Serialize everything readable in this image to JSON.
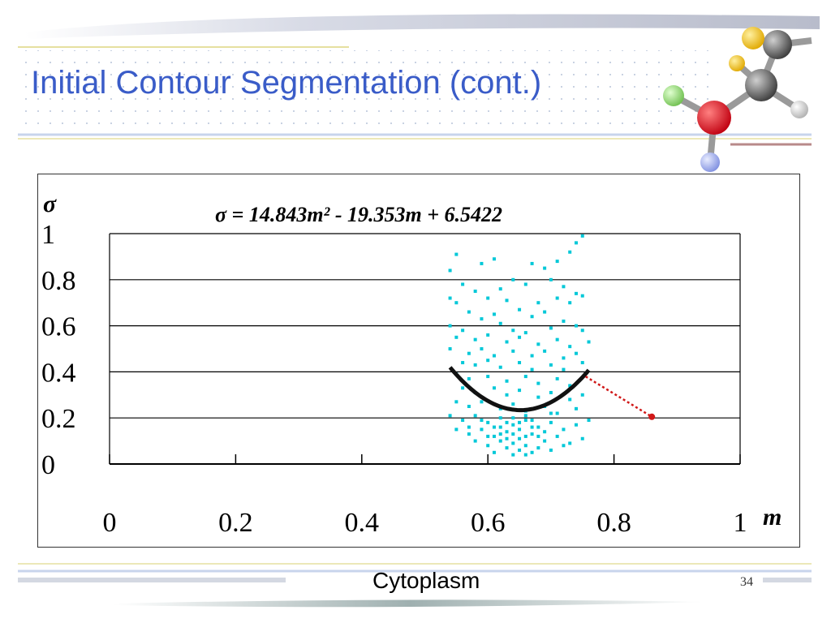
{
  "slide": {
    "title": "Initial Contour Segmentation (cont.)",
    "caption": "Cytoplasm",
    "page_number": "34"
  },
  "colors": {
    "title": "#3a5cc8",
    "points": "#00c8d8",
    "curve": "#111111",
    "annotation": "#d01818",
    "grid": "#000000"
  },
  "chart_data": {
    "type": "scatter",
    "equation": "σ = 14.843m² - 19.353m + 6.5422",
    "xlabel": "m",
    "ylabel": "σ",
    "xlim": [
      0,
      1
    ],
    "ylim": [
      0,
      1
    ],
    "x_ticks": [
      "0",
      "0.2",
      "0.4",
      "0.6",
      "0.8",
      "1"
    ],
    "y_ticks": [
      "0",
      "0.2",
      "0.4",
      "0.6",
      "0.8",
      "1"
    ],
    "grid": "horizontal",
    "fit": {
      "coefficients": [
        14.843,
        -19.353,
        6.5422
      ],
      "x_range": [
        0.54,
        0.76
      ]
    },
    "annotation_point": {
      "x": 0.86,
      "y": 0.205,
      "from": {
        "x": 0.755,
        "y": 0.38
      }
    },
    "series": [
      {
        "points": [
          [
            0.55,
            0.91
          ],
          [
            0.54,
            0.84
          ],
          [
            0.59,
            0.87
          ],
          [
            0.61,
            0.89
          ],
          [
            0.67,
            0.87
          ],
          [
            0.69,
            0.85
          ],
          [
            0.71,
            0.88
          ],
          [
            0.74,
            0.96
          ],
          [
            0.75,
            0.99
          ],
          [
            0.73,
            0.92
          ],
          [
            0.56,
            0.78
          ],
          [
            0.58,
            0.75
          ],
          [
            0.64,
            0.8
          ],
          [
            0.66,
            0.78
          ],
          [
            0.7,
            0.8
          ],
          [
            0.72,
            0.77
          ],
          [
            0.74,
            0.74
          ],
          [
            0.75,
            0.73
          ],
          [
            0.62,
            0.76
          ],
          [
            0.54,
            0.72
          ],
          [
            0.55,
            0.7
          ],
          [
            0.6,
            0.72
          ],
          [
            0.63,
            0.71
          ],
          [
            0.68,
            0.7
          ],
          [
            0.71,
            0.72
          ],
          [
            0.73,
            0.7
          ],
          [
            0.57,
            0.66
          ],
          [
            0.59,
            0.63
          ],
          [
            0.61,
            0.65
          ],
          [
            0.65,
            0.67
          ],
          [
            0.67,
            0.64
          ],
          [
            0.69,
            0.66
          ],
          [
            0.72,
            0.62
          ],
          [
            0.74,
            0.6
          ],
          [
            0.54,
            0.6
          ],
          [
            0.56,
            0.58
          ],
          [
            0.62,
            0.61
          ],
          [
            0.64,
            0.58
          ],
          [
            0.66,
            0.57
          ],
          [
            0.7,
            0.59
          ],
          [
            0.75,
            0.58
          ],
          [
            0.55,
            0.55
          ],
          [
            0.58,
            0.54
          ],
          [
            0.6,
            0.56
          ],
          [
            0.63,
            0.53
          ],
          [
            0.65,
            0.55
          ],
          [
            0.68,
            0.52
          ],
          [
            0.71,
            0.54
          ],
          [
            0.73,
            0.51
          ],
          [
            0.76,
            0.53
          ],
          [
            0.54,
            0.5
          ],
          [
            0.57,
            0.48
          ],
          [
            0.59,
            0.5
          ],
          [
            0.61,
            0.47
          ],
          [
            0.64,
            0.49
          ],
          [
            0.67,
            0.47
          ],
          [
            0.69,
            0.49
          ],
          [
            0.72,
            0.46
          ],
          [
            0.74,
            0.48
          ],
          [
            0.56,
            0.44
          ],
          [
            0.58,
            0.43
          ],
          [
            0.6,
            0.45
          ],
          [
            0.62,
            0.42
          ],
          [
            0.65,
            0.44
          ],
          [
            0.67,
            0.41
          ],
          [
            0.7,
            0.43
          ],
          [
            0.72,
            0.41
          ],
          [
            0.75,
            0.44
          ],
          [
            0.55,
            0.39
          ],
          [
            0.57,
            0.37
          ],
          [
            0.6,
            0.38
          ],
          [
            0.63,
            0.36
          ],
          [
            0.66,
            0.38
          ],
          [
            0.68,
            0.35
          ],
          [
            0.71,
            0.37
          ],
          [
            0.73,
            0.34
          ],
          [
            0.56,
            0.33
          ],
          [
            0.58,
            0.31
          ],
          [
            0.61,
            0.33
          ],
          [
            0.63,
            0.3
          ],
          [
            0.65,
            0.32
          ],
          [
            0.68,
            0.29
          ],
          [
            0.7,
            0.31
          ],
          [
            0.73,
            0.28
          ],
          [
            0.75,
            0.3
          ],
          [
            0.55,
            0.27
          ],
          [
            0.57,
            0.25
          ],
          [
            0.59,
            0.27
          ],
          [
            0.62,
            0.24
          ],
          [
            0.64,
            0.26
          ],
          [
            0.66,
            0.23
          ],
          [
            0.69,
            0.25
          ],
          [
            0.71,
            0.22
          ],
          [
            0.74,
            0.24
          ],
          [
            0.54,
            0.21
          ],
          [
            0.56,
            0.19
          ],
          [
            0.58,
            0.21
          ],
          [
            0.6,
            0.18
          ],
          [
            0.62,
            0.2
          ],
          [
            0.64,
            0.17
          ],
          [
            0.66,
            0.19
          ],
          [
            0.68,
            0.16
          ],
          [
            0.7,
            0.18
          ],
          [
            0.72,
            0.15
          ],
          [
            0.74,
            0.17
          ],
          [
            0.76,
            0.19
          ],
          [
            0.55,
            0.15
          ],
          [
            0.57,
            0.13
          ],
          [
            0.59,
            0.15
          ],
          [
            0.61,
            0.12
          ],
          [
            0.63,
            0.14
          ],
          [
            0.65,
            0.11
          ],
          [
            0.67,
            0.13
          ],
          [
            0.69,
            0.1
          ],
          [
            0.71,
            0.12
          ],
          [
            0.73,
            0.09
          ],
          [
            0.75,
            0.11
          ],
          [
            0.58,
            0.1
          ],
          [
            0.6,
            0.08
          ],
          [
            0.62,
            0.1
          ],
          [
            0.63,
            0.07
          ],
          [
            0.64,
            0.09
          ],
          [
            0.65,
            0.06
          ],
          [
            0.66,
            0.08
          ],
          [
            0.67,
            0.05
          ],
          [
            0.68,
            0.07
          ],
          [
            0.7,
            0.06
          ],
          [
            0.72,
            0.08
          ],
          [
            0.61,
            0.05
          ],
          [
            0.64,
            0.04
          ],
          [
            0.66,
            0.04
          ],
          [
            0.62,
            0.13
          ],
          [
            0.63,
            0.11
          ],
          [
            0.64,
            0.13
          ],
          [
            0.65,
            0.15
          ],
          [
            0.66,
            0.12
          ],
          [
            0.67,
            0.16
          ],
          [
            0.68,
            0.12
          ],
          [
            0.62,
            0.16
          ],
          [
            0.63,
            0.18
          ],
          [
            0.64,
            0.2
          ],
          [
            0.65,
            0.18
          ],
          [
            0.66,
            0.21
          ],
          [
            0.67,
            0.19
          ],
          [
            0.6,
            0.12
          ],
          [
            0.61,
            0.16
          ],
          [
            0.69,
            0.14
          ],
          [
            0.7,
            0.22
          ],
          [
            0.59,
            0.19
          ],
          [
            0.57,
            0.16
          ]
        ]
      }
    ]
  }
}
